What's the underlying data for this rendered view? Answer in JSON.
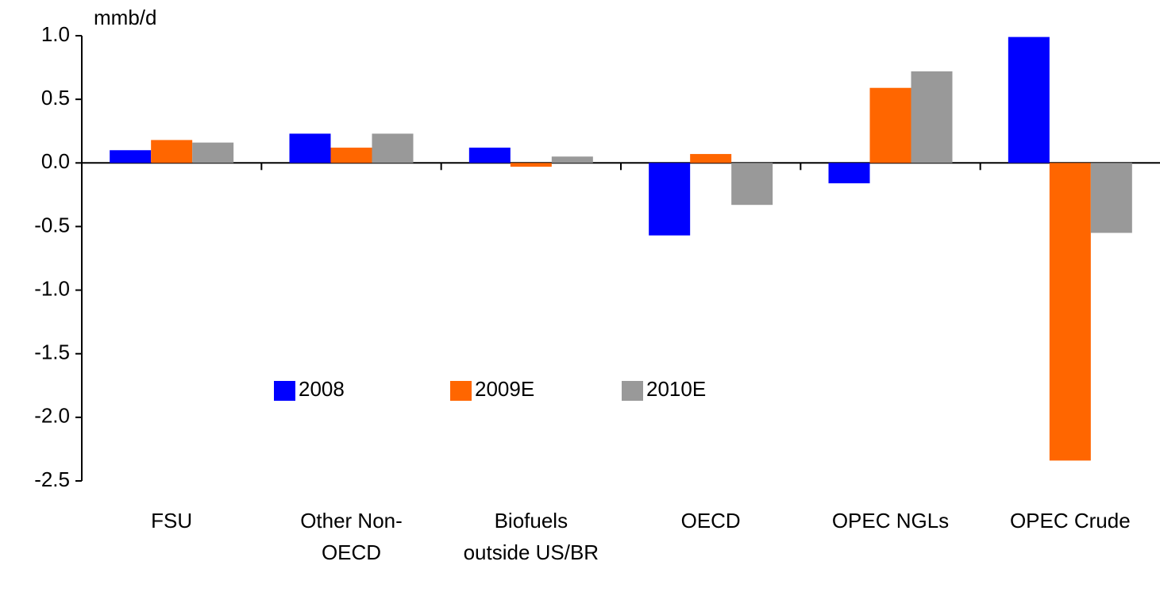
{
  "chart_data": {
    "type": "bar",
    "y_label": "mmb/d",
    "categories": [
      "FSU",
      "Other Non-OECD",
      "Biofuels outside US/BR",
      "OECD",
      "OPEC NGLs",
      "OPEC Crude"
    ],
    "series": [
      {
        "name": "2008",
        "color": "#0000ff",
        "values": [
          0.1,
          0.23,
          0.12,
          -0.57,
          -0.16,
          0.99
        ]
      },
      {
        "name": "2009E",
        "color": "#ff6600",
        "values": [
          0.18,
          0.12,
          -0.03,
          0.07,
          0.59,
          -2.34
        ]
      },
      {
        "name": "2010E",
        "color": "#999999",
        "values": [
          0.16,
          0.23,
          0.05,
          -0.33,
          0.72,
          -0.55
        ]
      }
    ],
    "ylim": [
      -2.5,
      1.0
    ],
    "yticks": [
      {
        "value": -2.5,
        "label": "-2.5"
      },
      {
        "value": -2,
        "label": "-2.0"
      },
      -1.5,
      {
        "value": -1,
        "label": "-1.0"
      },
      -0.5,
      {
        "value": 0,
        "label": "0.0"
      },
      0.5,
      {
        "value": 1,
        "label": "1.0"
      }
    ],
    "grid": false,
    "legend": "center"
  }
}
